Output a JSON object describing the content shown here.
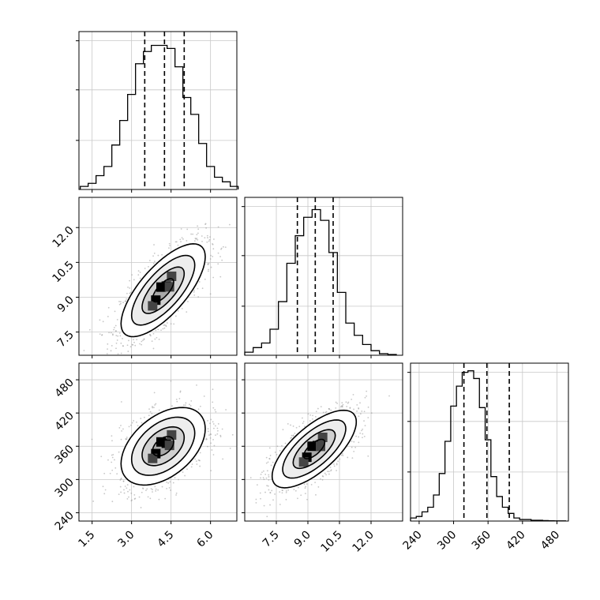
{
  "chart_data": [
    {
      "type": "histogram",
      "panel": "p1-marginal",
      "xlim": [
        1.0,
        7.0
      ],
      "bins": [
        1.2,
        1.5,
        1.8,
        2.1,
        2.4,
        2.7,
        3.0,
        3.3,
        3.6,
        3.9,
        4.2,
        4.5,
        4.8,
        5.1,
        5.4,
        5.7,
        6.0,
        6.3,
        6.6,
        6.9
      ],
      "counts": [
        0.02,
        0.04,
        0.09,
        0.15,
        0.29,
        0.45,
        0.62,
        0.82,
        0.9,
        0.94,
        0.94,
        0.92,
        0.8,
        0.6,
        0.49,
        0.3,
        0.15,
        0.08,
        0.05,
        0.02
      ],
      "quantiles": [
        3.5,
        4.25,
        5.0
      ],
      "yticks": [
        0.33,
        0.67,
        1.0
      ]
    },
    {
      "type": "histogram",
      "panel": "p2-marginal",
      "xlim": [
        6.0,
        13.5
      ],
      "bins": [
        6.2,
        6.6,
        7.0,
        7.4,
        7.8,
        8.2,
        8.6,
        9.0,
        9.4,
        9.8,
        10.2,
        10.6,
        11.0,
        11.4,
        11.8,
        12.2,
        12.6,
        13.0
      ],
      "counts": [
        0.02,
        0.05,
        0.08,
        0.17,
        0.35,
        0.6,
        0.78,
        0.9,
        0.95,
        0.88,
        0.67,
        0.41,
        0.21,
        0.13,
        0.07,
        0.03,
        0.01,
        0.005
      ],
      "quantiles": [
        8.5,
        9.35,
        10.2
      ],
      "yticks": [
        0.33,
        0.67,
        1.0
      ]
    },
    {
      "type": "histogram",
      "panel": "p3-marginal",
      "xlim": [
        225,
        500
      ],
      "bins": [
        230,
        240,
        250,
        260,
        270,
        280,
        290,
        300,
        310,
        320,
        330,
        340,
        350,
        360,
        370,
        380,
        390,
        400,
        410,
        420,
        430,
        440,
        450,
        460,
        470,
        480,
        490
      ],
      "counts": [
        0.02,
        0.03,
        0.06,
        0.09,
        0.17,
        0.31,
        0.52,
        0.75,
        0.88,
        0.97,
        0.98,
        0.93,
        0.74,
        0.53,
        0.29,
        0.16,
        0.09,
        0.05,
        0.02,
        0.01,
        0.01,
        0.005,
        0.005,
        0.003,
        0.002,
        0.001,
        0.001
      ],
      "quantiles": [
        318,
        358,
        397
      ],
      "yticks": [
        0.33,
        0.67,
        1.0
      ]
    },
    {
      "type": "scatter",
      "panel": "p1-vs-p2",
      "xlim": [
        1.0,
        7.0
      ],
      "ylim": [
        6.5,
        13.3
      ],
      "center": [
        4.2,
        9.3
      ],
      "contours": [
        0.5,
        1.0,
        1.5,
        2.0
      ],
      "spread": [
        0.8,
        1.0
      ],
      "correlation": 0.72
    },
    {
      "type": "scatter",
      "panel": "p1-vs-p3",
      "xlim": [
        1.0,
        7.0
      ],
      "ylim": [
        225,
        510
      ],
      "center": [
        4.2,
        360
      ],
      "contours": [
        0.5,
        1.0,
        1.5,
        2.0
      ],
      "spread": [
        0.8,
        35
      ],
      "correlation": 0.45
    },
    {
      "type": "scatter",
      "panel": "p2-vs-p3",
      "xlim": [
        6.0,
        13.5
      ],
      "ylim": [
        225,
        510
      ],
      "center": [
        9.3,
        355
      ],
      "contours": [
        0.5,
        1.0,
        1.5,
        2.0
      ],
      "spread": [
        1.0,
        35
      ],
      "correlation": 0.7
    }
  ],
  "axes": {
    "p1_ticks": [
      "1.5",
      "3.0",
      "4.5",
      "6.0"
    ],
    "p1_tick_values": [
      1.5,
      3.0,
      4.5,
      6.0
    ],
    "p2_ticks": [
      "7.5",
      "9.0",
      "10.5",
      "12.0"
    ],
    "p2_tick_values": [
      7.5,
      9.0,
      10.5,
      12.0
    ],
    "p3_ticks": [
      "240",
      "300",
      "360",
      "420",
      "480"
    ],
    "p3_tick_values": [
      240,
      300,
      360,
      420,
      480
    ]
  }
}
